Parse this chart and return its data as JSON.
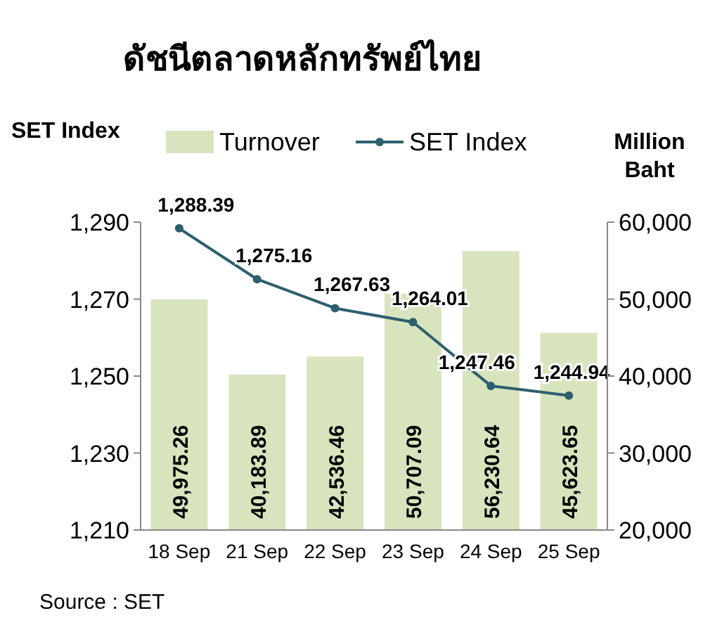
{
  "chart_data": {
    "type": "bar",
    "title": "ดัชนีตลาดหลักทรัพย์ไทย",
    "ylabel": "SET Index",
    "y2label": "Million Baht",
    "categories": [
      "18 Sep",
      "21 Sep",
      "22 Sep",
      "23 Sep",
      "24 Sep",
      "25 Sep"
    ],
    "series": [
      {
        "name": "Turnover",
        "axis": "y2",
        "color": "#d7e4bd",
        "values": [
          49975.26,
          40183.89,
          42536.46,
          50707.09,
          56230.64,
          45623.65
        ],
        "value_labels": [
          "49,975.26",
          "40,183.89",
          "42,536.46",
          "50,707.09",
          "56,230.64",
          "45,623.65"
        ]
      },
      {
        "name": "SET Index",
        "type": "line",
        "axis": "y",
        "color": "#2e5f6e",
        "marker": "circle",
        "values": [
          1288.39,
          1275.16,
          1267.63,
          1264.01,
          1247.46,
          1244.94
        ],
        "value_labels": [
          "1,288.39",
          "1,275.16",
          "1,267.63",
          "1,264.01",
          "1,247.46",
          "1,244.94"
        ]
      }
    ],
    "ylim": [
      1210,
      1290
    ],
    "yticks": [
      {
        "value": 1210,
        "label": "1,210"
      },
      {
        "value": 1230,
        "label": "1,230"
      },
      {
        "value": 1250,
        "label": "1,250"
      },
      {
        "value": 1270,
        "label": "1,270"
      },
      {
        "value": 1290,
        "label": "1,290"
      }
    ],
    "y2lim": [
      20000,
      60000
    ],
    "y2ticks": [
      {
        "value": 20000,
        "label": "20,000"
      },
      {
        "value": 30000,
        "label": "30,000"
      },
      {
        "value": 40000,
        "label": "40,000"
      },
      {
        "value": 50000,
        "label": "50,000"
      },
      {
        "value": 60000,
        "label": "60,000"
      }
    ],
    "legend": "top",
    "grid": false,
    "annotations": [
      "Source : SET"
    ]
  }
}
